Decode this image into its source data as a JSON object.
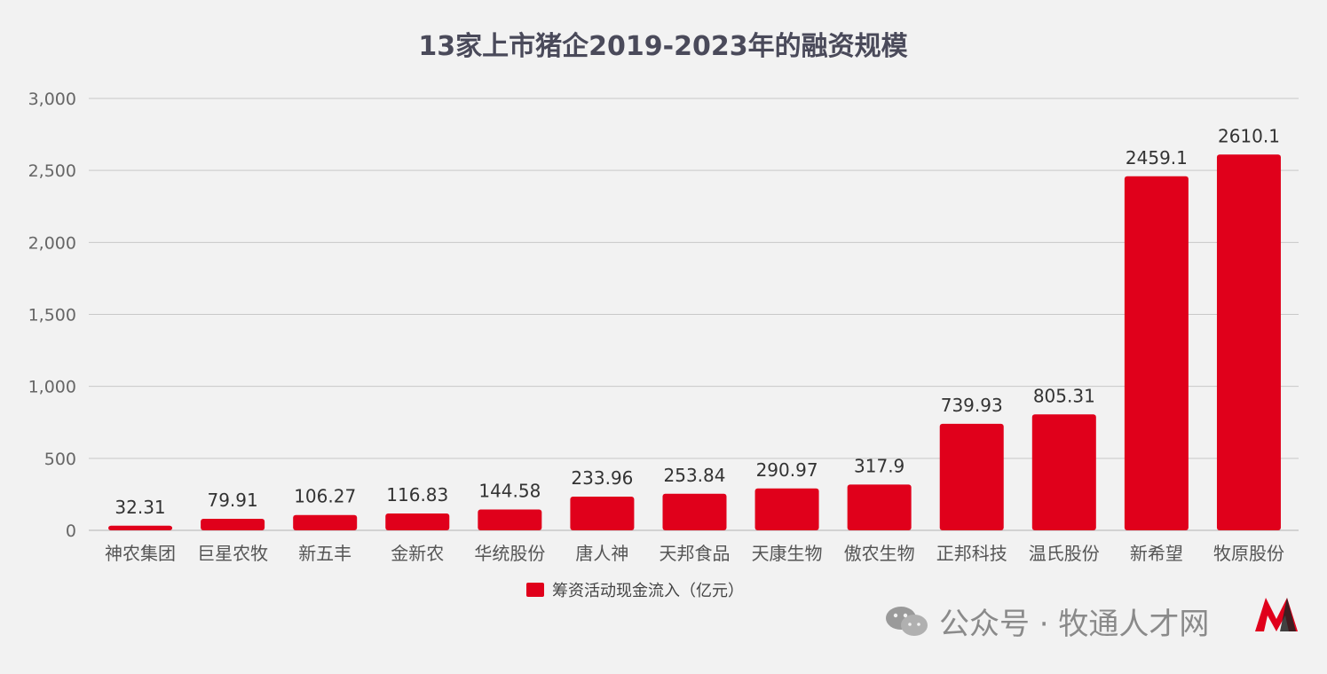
{
  "chart_data": {
    "type": "bar",
    "title": "13家上市猪企2019-2023年的融资规模",
    "categories": [
      "神农集团",
      "巨星农牧",
      "新五丰",
      "金新农",
      "华统股份",
      "唐人神",
      "天邦食品",
      "天康生物",
      "傲农生物",
      "正邦科技",
      "温氏股份",
      "新希望",
      "牧原股份"
    ],
    "series": [
      {
        "name": "筹资活动现金流入（亿元）",
        "values": [
          32.31,
          79.91,
          106.27,
          116.83,
          144.58,
          233.96,
          253.84,
          290.97,
          317.9,
          739.93,
          805.31,
          2459.1,
          2610.1
        ],
        "labels": [
          "32.31",
          "79.91",
          "106.27",
          "116.83",
          "144.58",
          "233.96",
          "253.84",
          "290.97",
          "317.9",
          "739.93",
          "805.31",
          "2459.1",
          "2610.1"
        ]
      }
    ],
    "ylim": [
      0,
      3000
    ],
    "yticks": [
      0,
      500,
      1000,
      1500,
      2000,
      2500,
      3000
    ],
    "ytick_labels": [
      "0",
      "500",
      "1,000",
      "1,500",
      "2,000",
      "2,500",
      "3,000"
    ],
    "grid": true,
    "legend_position": "bottom",
    "colors": {
      "bar": "#e0001b",
      "grid": "#c8c8c8",
      "background": "#f2f2f2"
    }
  },
  "watermark": {
    "text": "公众号 · 牧通人才网",
    "icon": "wechat-icon"
  }
}
